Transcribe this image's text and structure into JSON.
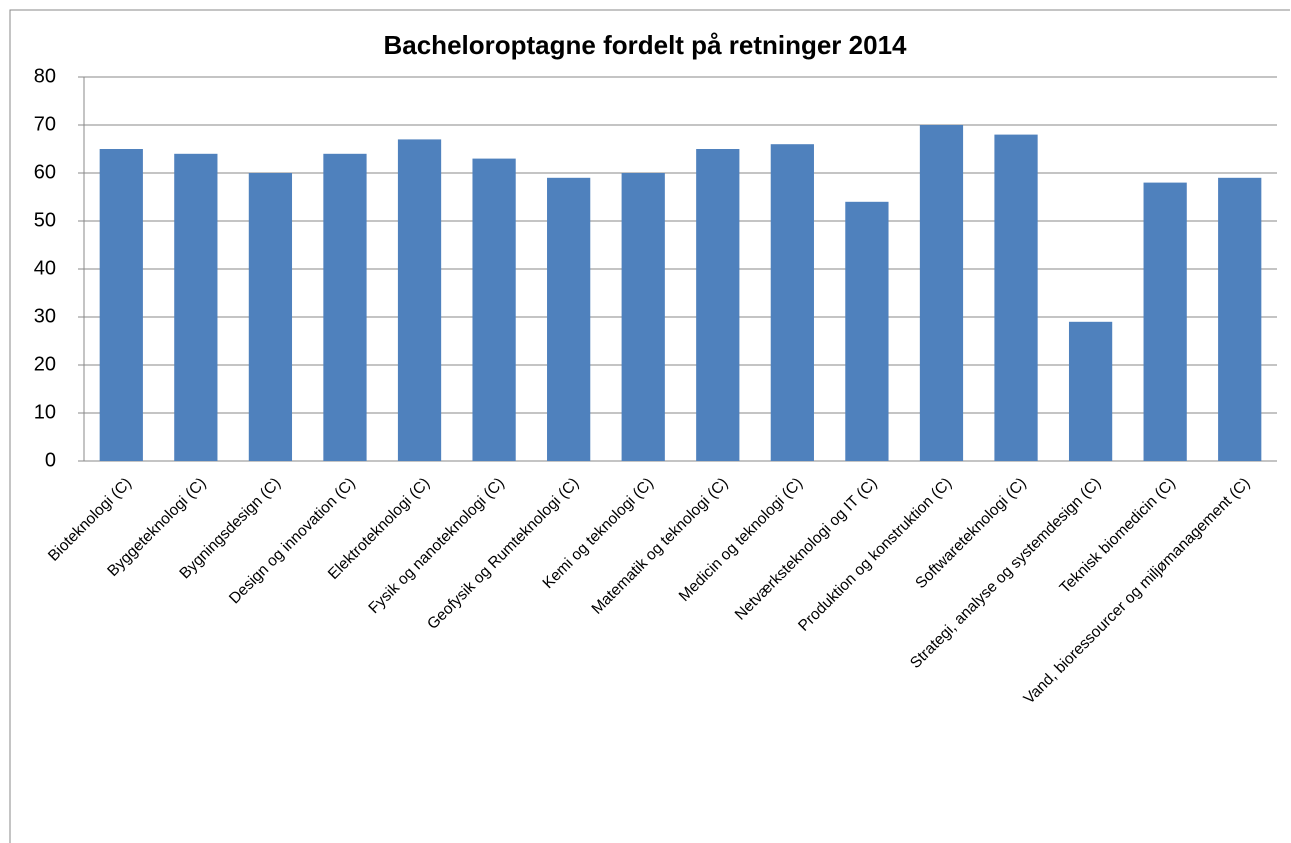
{
  "chart_data": {
    "type": "bar",
    "title": "Bacheloroptagne fordelt på retninger 2014",
    "categories": [
      "Bioteknologi (C)",
      "Byggeteknologi (C)",
      "Bygningsdesign (C)",
      "Design og innovation (C)",
      "Elektroteknologi (C)",
      "Fysik og nanoteknologi (C)",
      "Geofysik og Rumteknologi (C)",
      "Kemi og teknologi (C)",
      "Matematik og teknologi (C)",
      "Medicin og teknologi (C)",
      "Netværksteknologi og IT (C)",
      "Produktion og konstruktion (C)",
      "Softwareteknologi (C)",
      "Strategi, analyse og systemdesign (C)",
      "Teknisk biomedicin (C)",
      "Vand, bioressourcer og miljømanagement (C)"
    ],
    "values": [
      65,
      64,
      60,
      64,
      67,
      63,
      59,
      60,
      65,
      66,
      54,
      70,
      68,
      29,
      58,
      59
    ],
    "color": "#4f81bd",
    "ylim": [
      0,
      80
    ],
    "yticks": [
      0,
      10,
      20,
      30,
      40,
      50,
      60,
      70,
      80
    ],
    "grid": true
  }
}
